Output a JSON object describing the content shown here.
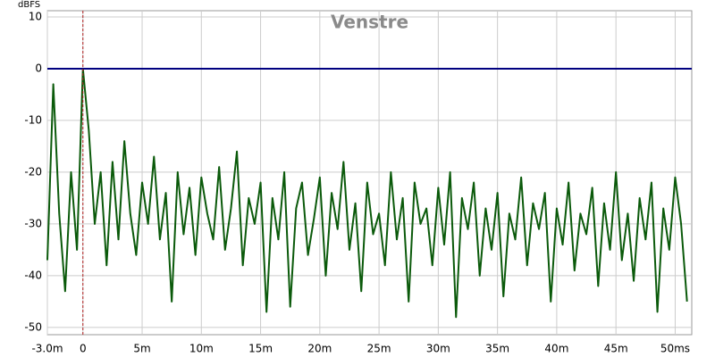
{
  "chart_data": {
    "type": "line",
    "title": "Venstre",
    "y_label": "dBFS",
    "xlim": [
      -3,
      51.4
    ],
    "ylim": [
      -51.4,
      11.2
    ],
    "xticks": [
      {
        "value": -3,
        "label": "-3.0m"
      },
      0,
      {
        "value": 5,
        "label": "5m"
      },
      {
        "value": 10,
        "label": "10m"
      },
      {
        "value": 15,
        "label": "15m"
      },
      {
        "value": 20,
        "label": "20m"
      },
      {
        "value": 25,
        "label": "25m"
      },
      {
        "value": 30,
        "label": "30m"
      },
      {
        "value": 35,
        "label": "35m"
      },
      {
        "value": 40,
        "label": "40m"
      },
      {
        "value": 45,
        "label": "45m"
      },
      {
        "value": 50,
        "label": "50ms"
      }
    ],
    "yticks": [
      10,
      0,
      -10,
      -20,
      -30,
      -40,
      -50
    ],
    "grid": true,
    "reference_line": {
      "value": 0,
      "color": "#000080"
    },
    "marker_x": {
      "value": 0,
      "color": "#b22222"
    },
    "x": [
      -3,
      -2.5,
      -2,
      -1.5,
      -1,
      -0.5,
      0,
      0.5,
      1,
      1.5,
      2,
      2.5,
      3,
      3.5,
      4,
      4.5,
      5,
      5.5,
      6,
      6.5,
      7,
      7.5,
      8,
      8.5,
      9,
      9.5,
      10,
      10.5,
      11,
      11.5,
      12,
      12.5,
      13,
      13.5,
      14,
      14.5,
      15,
      15.5,
      16,
      16.5,
      17,
      17.5,
      18,
      18.5,
      19,
      19.5,
      20,
      20.5,
      21,
      21.5,
      22,
      22.5,
      23,
      23.5,
      24,
      24.5,
      25,
      25.5,
      26,
      26.5,
      27,
      27.5,
      28,
      28.5,
      29,
      29.5,
      30,
      30.5,
      31,
      31.5,
      32,
      32.5,
      33,
      33.5,
      34,
      34.5,
      35,
      35.5,
      36,
      36.5,
      37,
      37.5,
      38,
      38.5,
      39,
      39.5,
      40,
      40.5,
      41,
      41.5,
      42,
      42.5,
      43,
      43.5,
      44,
      44.5,
      45,
      45.5,
      46,
      46.5,
      47,
      47.5,
      48,
      48.5,
      49,
      49.5,
      50,
      50.5,
      51
    ],
    "series": [
      {
        "color": "#0b5a0b",
        "values": [
          -37,
          -3,
          -28,
          -43,
          -20,
          -35,
          0,
          -12,
          -30,
          -20,
          -38,
          -18,
          -33,
          -14,
          -28,
          -36,
          -22,
          -30,
          -17,
          -33,
          -24,
          -45,
          -20,
          -32,
          -23,
          -36,
          -21,
          -28,
          -33,
          -19,
          -35,
          -27,
          -16,
          -38,
          -25,
          -30,
          -22,
          -47,
          -25,
          -33,
          -20,
          -46,
          -27,
          -22,
          -36,
          -29,
          -21,
          -40,
          -24,
          -31,
          -18,
          -35,
          -26,
          -43,
          -22,
          -32,
          -28,
          -38,
          -20,
          -33,
          -25,
          -45,
          -22,
          -30,
          -27,
          -38,
          -23,
          -34,
          -20,
          -48,
          -25,
          -31,
          -22,
          -40,
          -27,
          -35,
          -24,
          -44,
          -28,
          -33,
          -21,
          -38,
          -26,
          -31,
          -24,
          -45,
          -27,
          -34,
          -22,
          -39,
          -28,
          -32,
          -23,
          -42,
          -26,
          -35,
          -20,
          -37,
          -28,
          -41,
          -25,
          -33,
          -22,
          -47,
          -27,
          -35,
          -21,
          -30,
          -45
        ]
      }
    ]
  }
}
